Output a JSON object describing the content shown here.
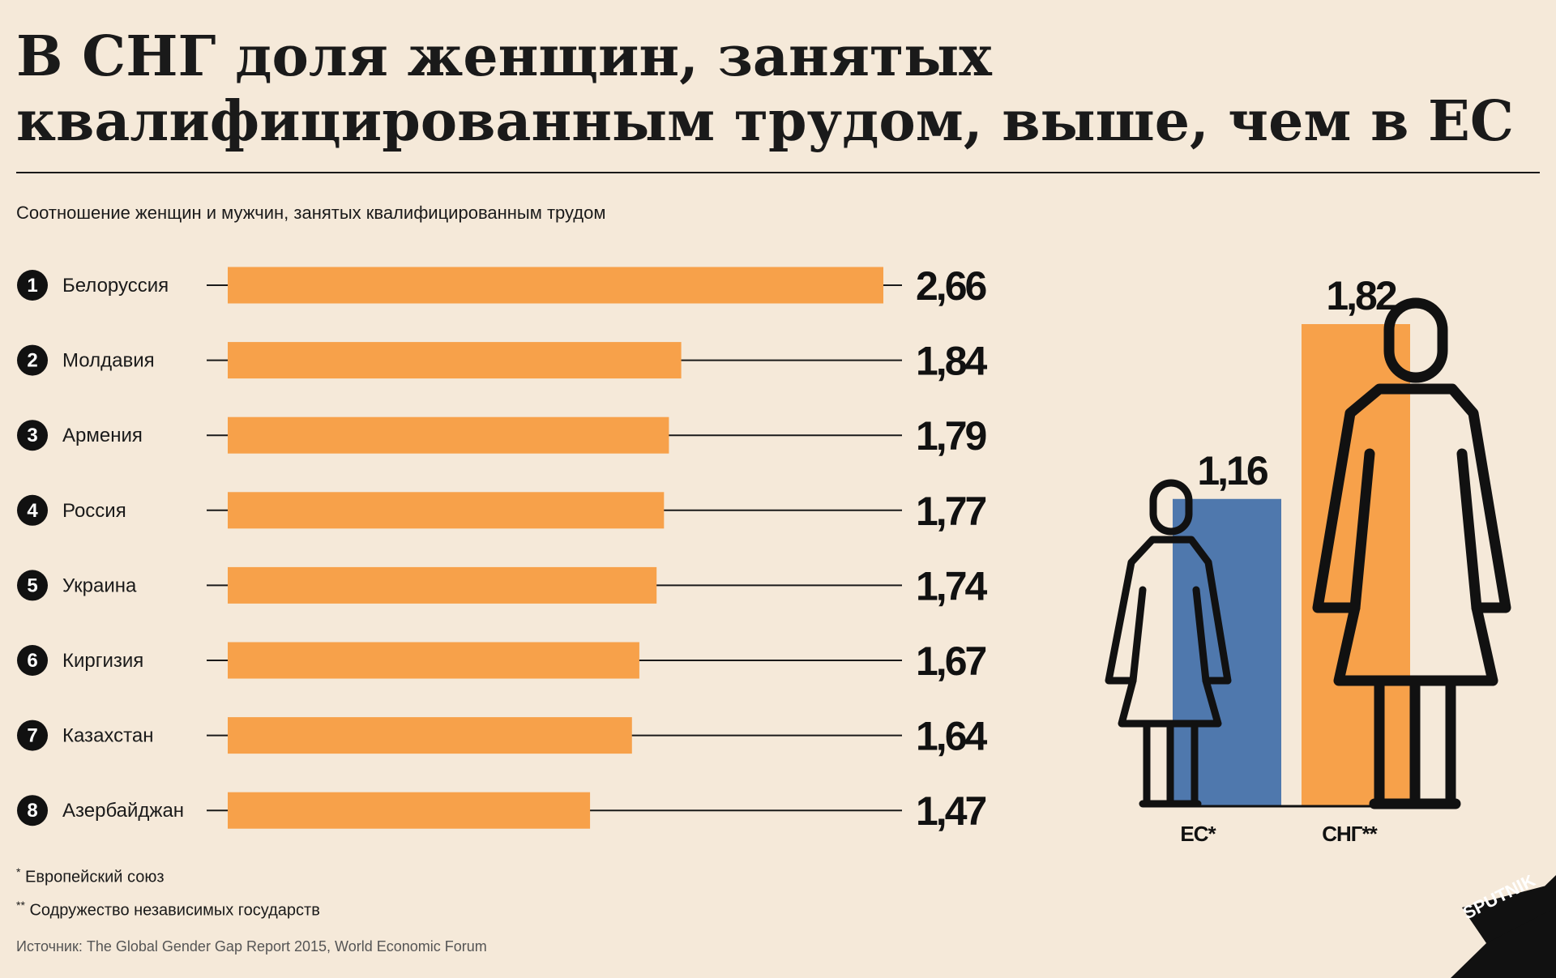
{
  "title": {
    "line1": "В СНГ доля женщин, занятых",
    "line2": "квалифицированным трудом, выше, чем в ЕС"
  },
  "subtitle": "Соотношение женщин и мужчин, занятых квалифицированным трудом",
  "chart_data": [
    {
      "type": "bar",
      "orientation": "horizontal",
      "title": "Соотношение женщин и мужчин, занятых квалифицированным трудом",
      "ranks": [
        "1",
        "2",
        "3",
        "4",
        "5",
        "6",
        "7",
        "8"
      ],
      "categories": [
        "Белоруссия",
        "Молдавия",
        "Армения",
        "Россия",
        "Украина",
        "Киргизия",
        "Казахстан",
        "Азербайджан"
      ],
      "values": [
        2.66,
        1.84,
        1.79,
        1.77,
        1.74,
        1.67,
        1.64,
        1.47
      ],
      "value_labels": [
        "2,66",
        "1,84",
        "1,79",
        "1,77",
        "1,74",
        "1,67",
        "1,64",
        "1,47"
      ],
      "xlim": [
        0,
        2.66
      ],
      "bar_color": "#f7a14a"
    },
    {
      "type": "bar",
      "orientation": "vertical",
      "categories": [
        "ЕС*",
        "СНГ**"
      ],
      "values": [
        1.16,
        1.82
      ],
      "value_labels": [
        "1,16",
        "1,82"
      ],
      "colors": [
        "#4f78ad",
        "#f7a14a"
      ],
      "ylim": [
        0,
        1.82
      ]
    }
  ],
  "footnotes": [
    {
      "mark": "*",
      "text": "Европейский  союз"
    },
    {
      "mark": "**",
      "text": "Содружество независимых государств"
    }
  ],
  "source": "Источник: The Global Gender Gap Report 2015, World Economic Forum",
  "logo_text": "SPUTNIK",
  "colors": {
    "background": "#f5e9d9",
    "orange": "#f7a14a",
    "blue": "#4f78ad",
    "dark": "#111111"
  }
}
